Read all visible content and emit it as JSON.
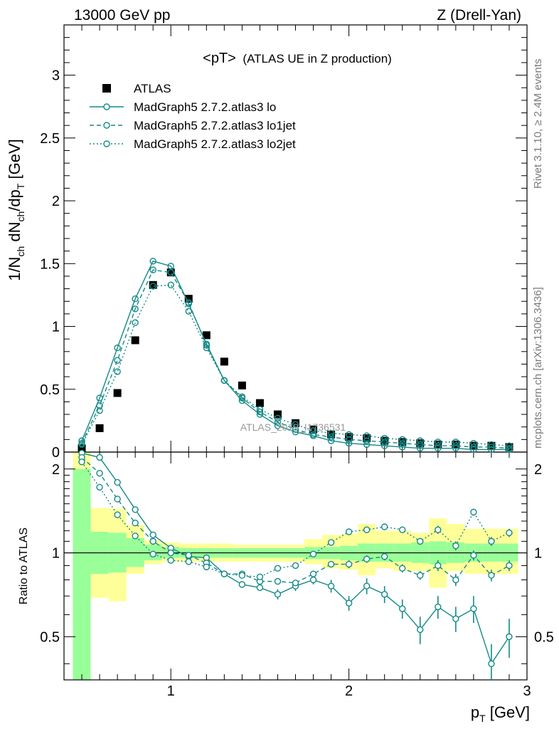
{
  "header": {
    "left": "13000 GeV pp",
    "right": "Z (Drell-Yan)"
  },
  "side_labels": {
    "right_top": "Rivet 3.1.10, ≥ 2.4M events",
    "right_bottom": "mcplots.cern.ch [arXiv:1306.3436]"
  },
  "watermark": "ATLAS_2019_I1736531",
  "colors": {
    "data": "#000000",
    "mc": "#138a86",
    "band_inner": "#99ff99",
    "band_outer": "#ffff99"
  },
  "chart_data": [
    {
      "type": "scatter",
      "title": "<pT>",
      "subtitle": "(ATLAS UE in Z production)",
      "ylabel": "1/N_ch dN_ch/dp_T [GeV]",
      "xlim": [
        0.4,
        3.0
      ],
      "ylim": [
        0,
        3.4
      ],
      "yticks": [
        "0",
        "0.5",
        "1",
        "1.5",
        "2",
        "2.5",
        "3"
      ],
      "legend_position": "top-left",
      "x": [
        0.5,
        0.6,
        0.7,
        0.8,
        0.9,
        1.0,
        1.1,
        1.2,
        1.3,
        1.4,
        1.5,
        1.6,
        1.7,
        1.8,
        1.9,
        2.0,
        2.1,
        2.2,
        2.3,
        2.4,
        2.5,
        2.6,
        2.7,
        2.8,
        2.9
      ],
      "series": [
        {
          "name": "ATLAS",
          "style": "data",
          "values": [
            0.03,
            0.19,
            0.47,
            0.89,
            1.33,
            1.43,
            1.22,
            0.93,
            0.72,
            0.53,
            0.39,
            0.3,
            0.23,
            0.18,
            0.14,
            0.12,
            0.11,
            0.09,
            0.08,
            0.07,
            0.06,
            0.06,
            0.05,
            0.05,
            0.04
          ]
        },
        {
          "name": "MadGraph5 2.7.2.atlas3 lo",
          "style": "solid",
          "values": [
            0.09,
            0.43,
            0.83,
            1.22,
            1.52,
            1.48,
            1.18,
            0.86,
            0.57,
            0.41,
            0.3,
            0.21,
            0.16,
            0.13,
            0.09,
            0.07,
            0.06,
            0.05,
            0.04,
            0.03,
            0.03,
            0.03,
            0.02,
            0.02,
            0.02
          ]
        },
        {
          "name": "MadGraph5 2.7.2.atlas3 lo1jet",
          "style": "dashed",
          "values": [
            0.07,
            0.37,
            0.73,
            1.14,
            1.45,
            1.43,
            1.19,
            0.85,
            0.57,
            0.43,
            0.32,
            0.24,
            0.18,
            0.14,
            0.12,
            0.1,
            0.09,
            0.08,
            0.07,
            0.06,
            0.05,
            0.05,
            0.04,
            0.04,
            0.03
          ]
        },
        {
          "name": "MadGraph5 2.7.2.atlas3 lo2jet",
          "style": "dotted",
          "values": [
            0.06,
            0.33,
            0.64,
            1.03,
            1.32,
            1.33,
            1.12,
            0.83,
            0.57,
            0.44,
            0.34,
            0.27,
            0.22,
            0.17,
            0.15,
            0.14,
            0.13,
            0.11,
            0.1,
            0.09,
            0.08,
            0.08,
            0.07,
            0.06,
            0.05
          ]
        }
      ]
    },
    {
      "type": "line",
      "ylabel": "Ratio to ATLAS",
      "xlabel": "p_T [GeV]",
      "xlim": [
        0.4,
        3.0
      ],
      "ylim": [
        0.35,
        2.3
      ],
      "xticks": [
        "1",
        "2",
        "3"
      ],
      "yticks": [
        "0.5",
        "1",
        "2"
      ],
      "reference_line": 1.0,
      "x": [
        0.5,
        0.6,
        0.7,
        0.8,
        0.9,
        1.0,
        1.1,
        1.2,
        1.3,
        1.4,
        1.5,
        1.6,
        1.7,
        1.8,
        1.9,
        2.0,
        2.1,
        2.2,
        2.3,
        2.4,
        2.5,
        2.6,
        2.7,
        2.8,
        2.9
      ],
      "band_inner": [
        [
          0.3,
          2.0
        ],
        [
          0.84,
          1.19
        ],
        [
          0.85,
          1.18
        ],
        [
          0.89,
          1.13
        ],
        [
          0.94,
          1.07
        ],
        [
          0.96,
          1.05
        ],
        [
          0.96,
          1.04
        ],
        [
          0.96,
          1.04
        ],
        [
          0.96,
          1.04
        ],
        [
          0.96,
          1.04
        ],
        [
          0.96,
          1.04
        ],
        [
          0.96,
          1.04
        ],
        [
          0.96,
          1.04
        ],
        [
          0.95,
          1.05
        ],
        [
          0.95,
          1.05
        ],
        [
          0.94,
          1.06
        ],
        [
          0.93,
          1.08
        ],
        [
          0.93,
          1.08
        ],
        [
          0.93,
          1.08
        ],
        [
          0.92,
          1.09
        ],
        [
          0.91,
          1.1
        ],
        [
          0.92,
          1.09
        ],
        [
          0.93,
          1.08
        ],
        [
          0.93,
          1.08
        ],
        [
          0.93,
          1.08
        ]
      ],
      "band_outer": [
        [
          0.3,
          2.3
        ],
        [
          0.69,
          1.45
        ],
        [
          0.67,
          1.44
        ],
        [
          0.84,
          1.26
        ],
        [
          0.91,
          1.11
        ],
        [
          0.93,
          1.09
        ],
        [
          0.93,
          1.08
        ],
        [
          0.93,
          1.08
        ],
        [
          0.93,
          1.08
        ],
        [
          0.93,
          1.07
        ],
        [
          0.93,
          1.07
        ],
        [
          0.93,
          1.07
        ],
        [
          0.93,
          1.07
        ],
        [
          0.91,
          1.12
        ],
        [
          0.88,
          1.16
        ],
        [
          0.87,
          1.17
        ],
        [
          0.83,
          1.27
        ],
        [
          0.88,
          1.2
        ],
        [
          0.86,
          1.2
        ],
        [
          0.86,
          1.18
        ],
        [
          0.75,
          1.33
        ],
        [
          0.86,
          1.27
        ],
        [
          0.84,
          1.22
        ],
        [
          0.84,
          1.22
        ],
        [
          0.84,
          1.22
        ]
      ],
      "series": [
        {
          "name": "MadGraph5 2.7.2.atlas3 lo",
          "style": "solid",
          "values": [
            2.28,
            2.2,
            1.79,
            1.43,
            1.16,
            1.04,
            0.97,
            0.96,
            0.84,
            0.77,
            0.75,
            0.71,
            0.76,
            0.8,
            0.76,
            0.66,
            0.76,
            0.71,
            0.63,
            0.53,
            0.64,
            0.58,
            0.63,
            0.4,
            0.5
          ],
          "err": [
            0,
            0,
            0,
            0,
            0,
            0,
            0,
            0,
            0,
            0,
            0.02,
            0.03,
            0.03,
            0.03,
            0.04,
            0.04,
            0.05,
            0.05,
            0.05,
            0.06,
            0.06,
            0.06,
            0.07,
            0.07,
            0.08
          ]
        },
        {
          "name": "MadGraph5 2.7.2.atlas3 lo1jet",
          "style": "dashed",
          "values": [
            2.2,
            1.93,
            1.56,
            1.28,
            1.1,
            1.0,
            0.98,
            0.92,
            0.84,
            0.84,
            0.79,
            0.79,
            0.78,
            0.84,
            0.91,
            0.91,
            0.95,
            0.97,
            0.88,
            0.83,
            0.9,
            0.8,
            0.98,
            0.83,
            0.9
          ],
          "err": [
            0,
            0,
            0,
            0,
            0,
            0,
            0,
            0,
            0,
            0,
            0,
            0.02,
            0.02,
            0.02,
            0.02,
            0.03,
            0.03,
            0.03,
            0.03,
            0.03,
            0.04,
            0.04,
            0.04,
            0.04,
            0.04
          ]
        },
        {
          "name": "MadGraph5 2.7.2.atlas3 lo2jet",
          "style": "dotted",
          "values": [
            2.12,
            1.72,
            1.37,
            1.15,
            0.99,
            0.94,
            0.93,
            0.89,
            0.84,
            0.83,
            0.82,
            0.88,
            0.9,
            0.99,
            1.09,
            1.19,
            1.21,
            1.24,
            1.21,
            1.1,
            1.21,
            1.06,
            1.4,
            1.1,
            1.18
          ],
          "err": [
            0,
            0,
            0,
            0,
            0,
            0,
            0,
            0,
            0,
            0,
            0,
            0.02,
            0.02,
            0.02,
            0.02,
            0.03,
            0.03,
            0.03,
            0.03,
            0.03,
            0.04,
            0.04,
            0.04,
            0.04,
            0.04
          ]
        }
      ]
    }
  ]
}
